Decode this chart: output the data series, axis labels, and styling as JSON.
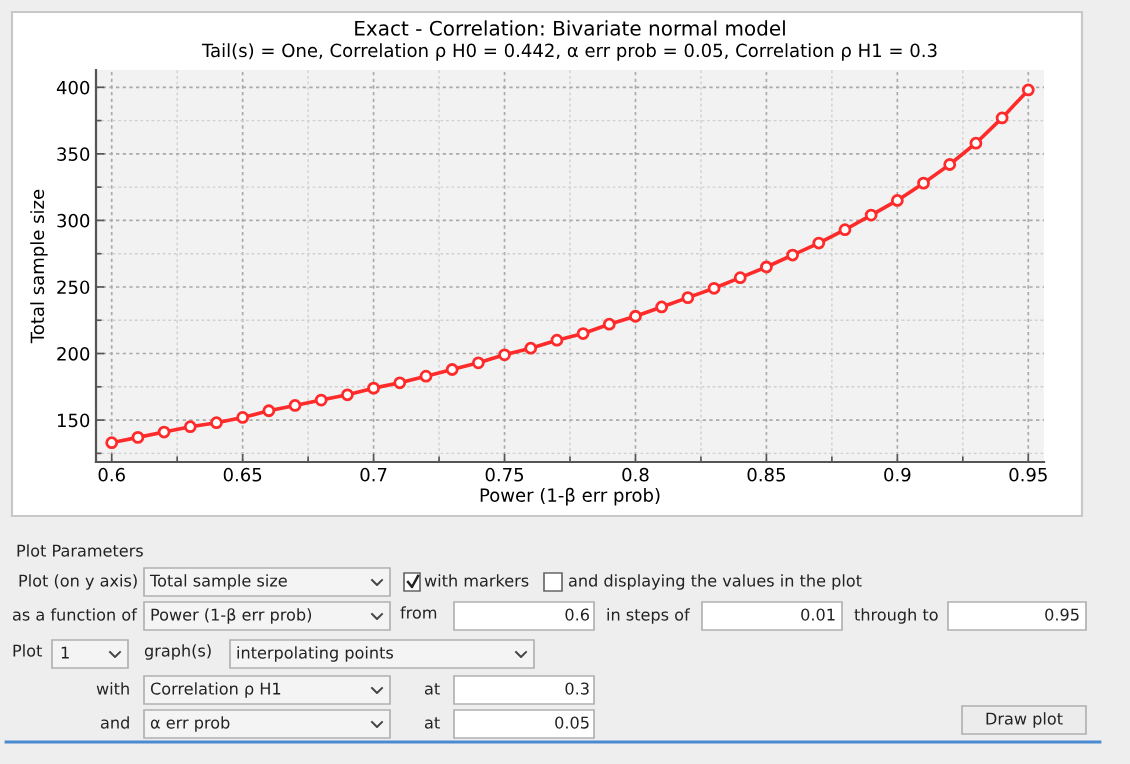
{
  "chart_data": {
    "type": "line",
    "title": "Exact - Correlation: Bivariate normal model",
    "subtitle": "Tail(s) = One, Correlation ρ H0 = 0.442, α err prob = 0.05, Correlation ρ H1 = 0.3",
    "xlabel": "Power (1-β err prob)",
    "ylabel": "Total sample size",
    "x": [
      0.6,
      0.61,
      0.62,
      0.63,
      0.64,
      0.65,
      0.66,
      0.67,
      0.68,
      0.69,
      0.7,
      0.71,
      0.72,
      0.73,
      0.74,
      0.75,
      0.76,
      0.77,
      0.78,
      0.79,
      0.8,
      0.81,
      0.82,
      0.83,
      0.84,
      0.85,
      0.86,
      0.87,
      0.88,
      0.89,
      0.9,
      0.91,
      0.92,
      0.93,
      0.94,
      0.95
    ],
    "series": [
      {
        "color": "#ff2a2a",
        "values": [
          133,
          137,
          141,
          145,
          148,
          152,
          157,
          161,
          165,
          169,
          174,
          178,
          183,
          188,
          193,
          199,
          204,
          210,
          215,
          222,
          228,
          235,
          242,
          249,
          257,
          265,
          274,
          283,
          293,
          304,
          315,
          328,
          342,
          358,
          377,
          398
        ]
      }
    ],
    "xlim": [
      0.594,
      0.956
    ],
    "ylim": [
      118.5,
      413
    ],
    "xticks": [
      0.6,
      0.65,
      0.7,
      0.75,
      0.8,
      0.85,
      0.9,
      0.95
    ],
    "yticks": [
      150,
      200,
      250,
      300,
      350,
      400
    ],
    "grid": true,
    "marker": "circle",
    "line_style": "solid",
    "annotations": [
      "Plot Parameters",
      "Plot (on y axis)",
      "Total sample size",
      "with markers",
      "and displaying the values in the plot",
      "as a function of",
      "Power (1-β err prob)",
      "from",
      "0.6",
      "in steps of",
      "0.01",
      "through to",
      "0.95",
      "Plot",
      "1",
      "graph(s)",
      "interpolating points",
      "with",
      "Correlation ρ H1",
      "at",
      "0.3",
      "and",
      "α err prob",
      "at",
      "0.05",
      "Draw plot"
    ]
  }
}
